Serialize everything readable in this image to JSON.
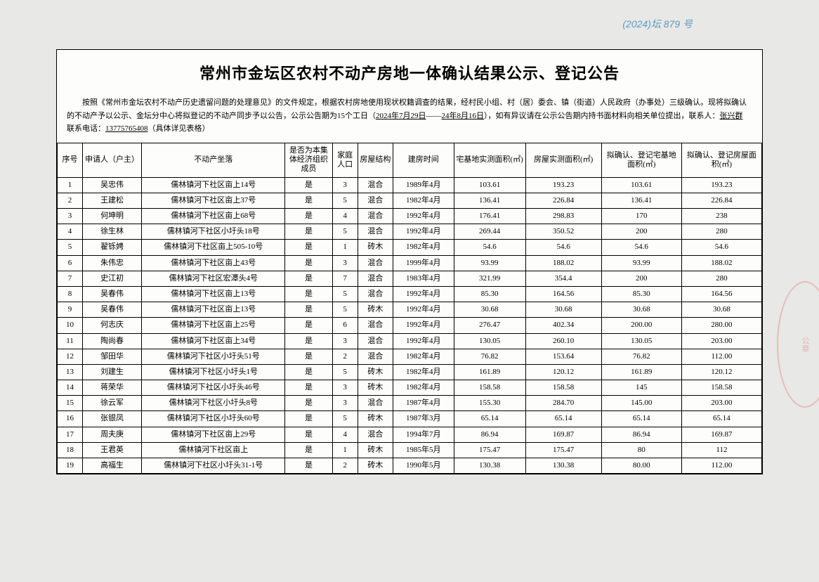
{
  "handwritten_note": "(2024)坛 879 号",
  "title": "常州市金坛区农村不动产房地一体确认结果公示、登记公告",
  "intro": {
    "text_a": "按照《常州市金坛农村不动产历史遗留问题的处理意见》的文件规定，根据农村房地使用现状权籍调查的结果，经村民小组、村（居）委会、镇（街道）人民政府（办事处）三级确认。现将拟确认的不动产予以公示、金坛分中心将拟登记的不动产同步予以公告，公示公告期为15个工日（",
    "date_from": "2024年7月29日",
    "text_b": "——",
    "date_to": "24年8月16日",
    "text_c": "），如有异议请在公示公告期内持书面材料向相关单位提出，联系人：",
    "contact_name": "张兴群",
    "text_d": "  联系电话：",
    "contact_phone": "13775765408",
    "text_e": "（具体详见表格）"
  },
  "columns": [
    "序号",
    "申请人（户主）",
    "不动产坐落",
    "是否为本集体经济组织成员",
    "家庭人口",
    "房屋结构",
    "建房时间",
    "宅基地实测面积(㎡)",
    "房屋实测面积(㎡)",
    "拟确认、登记宅基地面积(㎡)",
    "拟确认、登记房屋面积(㎡)"
  ],
  "rows": [
    [
      "1",
      "吴忠伟",
      "儒林镇河下社区亩上14号",
      "是",
      "3",
      "混合",
      "1989年4月",
      "103.61",
      "193.23",
      "103.61",
      "193.23"
    ],
    [
      "2",
      "王建松",
      "儒林镇河下社区亩上37号",
      "是",
      "5",
      "混合",
      "1982年4月",
      "136.41",
      "226.84",
      "136.41",
      "226.84"
    ],
    [
      "3",
      "何坤明",
      "儒林镇河下社区亩上68号",
      "是",
      "4",
      "混合",
      "1992年4月",
      "176.41",
      "298.83",
      "170",
      "238"
    ],
    [
      "4",
      "徐生林",
      "儒林镇河下社区小圩头18号",
      "是",
      "5",
      "混合",
      "1992年4月",
      "269.44",
      "350.52",
      "200",
      "280"
    ],
    [
      "5",
      "翟铄娉",
      "儒林镇河下社区亩上505-10号",
      "是",
      "1",
      "砖木",
      "1982年4月",
      "54.6",
      "54.6",
      "54.6",
      "54.6"
    ],
    [
      "6",
      "朱伟忠",
      "儒林镇河下社区亩上43号",
      "是",
      "3",
      "混合",
      "1999年4月",
      "93.99",
      "188.02",
      "93.99",
      "188.02"
    ],
    [
      "7",
      "史江初",
      "儒林镇河下社区宏潭头4号",
      "是",
      "7",
      "混合",
      "1983年4月",
      "321.99",
      "354.4",
      "200",
      "280"
    ],
    [
      "8",
      "吴春伟",
      "儒林镇河下社区亩上13号",
      "是",
      "5",
      "混合",
      "1992年4月",
      "85.30",
      "164.56",
      "85.30",
      "164.56"
    ],
    [
      "9",
      "吴春伟",
      "儒林镇河下社区亩上13号",
      "是",
      "5",
      "砖木",
      "1992年4月",
      "30.68",
      "30.68",
      "30.68",
      "30.68"
    ],
    [
      "10",
      "何志庆",
      "儒林镇河下社区亩上25号",
      "是",
      "6",
      "混合",
      "1992年4月",
      "276.47",
      "402.34",
      "200.00",
      "280.00"
    ],
    [
      "11",
      "陶尚春",
      "儒林镇河下社区亩上34号",
      "是",
      "3",
      "混合",
      "1992年4月",
      "130.05",
      "260.10",
      "130.05",
      "203.00"
    ],
    [
      "12",
      "邹田华",
      "儒林镇河下社区小圩头51号",
      "是",
      "2",
      "混合",
      "1982年4月",
      "76.82",
      "153.64",
      "76.82",
      "112.00"
    ],
    [
      "13",
      "刘建生",
      "儒林镇河下社区小圩头1号",
      "是",
      "5",
      "砖木",
      "1982年4月",
      "161.89",
      "120.12",
      "161.89",
      "120.12"
    ],
    [
      "14",
      "蒋荣华",
      "儒林镇河下社区小圩头46号",
      "是",
      "3",
      "砖木",
      "1982年4月",
      "158.58",
      "158.58",
      "145",
      "158.58"
    ],
    [
      "15",
      "徐云军",
      "儒林镇河下社区小圩头8号",
      "是",
      "3",
      "混合",
      "1987年4月",
      "155.30",
      "284.70",
      "145.00",
      "203.00"
    ],
    [
      "16",
      "张银凤",
      "儒林镇河下社区小圩头60号",
      "是",
      "5",
      "砖木",
      "1987年3月",
      "65.14",
      "65.14",
      "65.14",
      "65.14"
    ],
    [
      "17",
      "周夫庚",
      "儒林镇河下社区亩上29号",
      "是",
      "4",
      "混合",
      "1994年7月",
      "86.94",
      "169.87",
      "86.94",
      "169.87"
    ],
    [
      "18",
      "王君英",
      "儒林镇河下社区亩上",
      "是",
      "1",
      "砖木",
      "1985年5月",
      "175.47",
      "175.47",
      "80",
      "112"
    ],
    [
      "19",
      "高福生",
      "儒林镇河下社区小圩头31-1号",
      "是",
      "2",
      "砖木",
      "1990年5月",
      "130.38",
      "130.38",
      "80.00",
      "112.00"
    ]
  ],
  "stamp_text": "公章"
}
